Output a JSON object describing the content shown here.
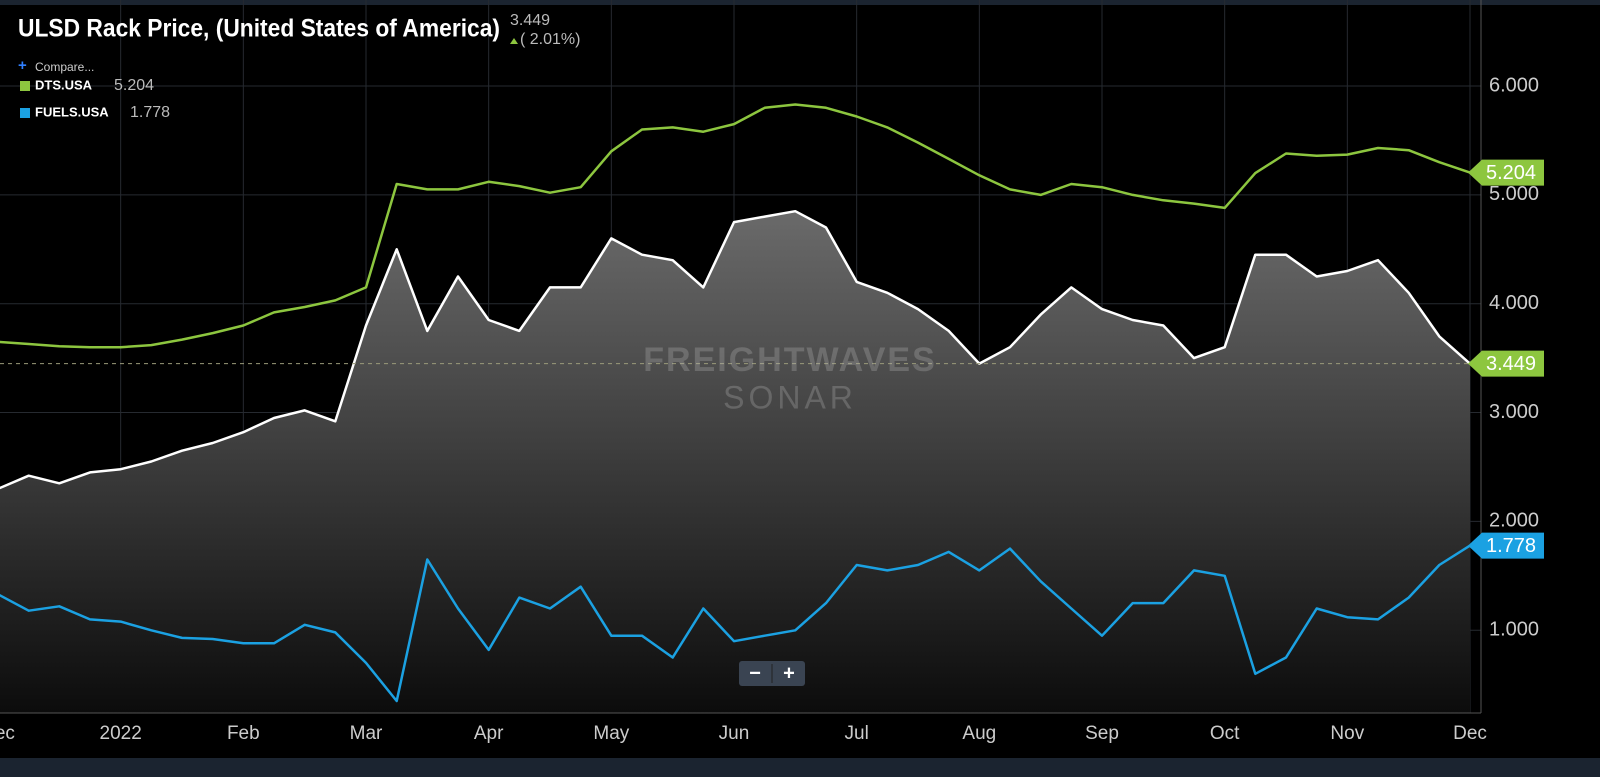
{
  "chart_data": {
    "type": "line",
    "title": "ULSD Rack Price, (United States of America)",
    "current_value": 3.449,
    "change_label": "( 2.01%)",
    "compare_label": "Compare...",
    "watermark": [
      "FREIGHTWAVES",
      "SONAR"
    ],
    "zoom_controls": [
      "−",
      "+"
    ],
    "categories": [
      "Dec",
      null,
      null,
      null,
      "2022",
      null,
      null,
      null,
      "Feb",
      null,
      null,
      null,
      "Mar",
      null,
      null,
      null,
      "Apr",
      null,
      null,
      null,
      "May",
      null,
      null,
      null,
      "Jun",
      null,
      null,
      null,
      "Jul",
      null,
      null,
      null,
      "Aug",
      null,
      null,
      null,
      "Sep",
      null,
      null,
      null,
      "Oct",
      null,
      null,
      null,
      "Nov",
      null,
      null,
      null,
      "Dec"
    ],
    "series": [
      {
        "color": "#ffffff",
        "label_color": "#8dc63f",
        "area": true,
        "values": [
          2.3,
          2.42,
          2.35,
          2.45,
          2.48,
          2.55,
          2.65,
          2.72,
          2.82,
          2.95,
          3.02,
          2.92,
          3.8,
          4.5,
          3.75,
          4.25,
          3.85,
          3.75,
          4.15,
          4.15,
          4.6,
          4.45,
          4.4,
          4.15,
          4.75,
          4.8,
          4.85,
          4.7,
          4.2,
          4.1,
          3.95,
          3.75,
          3.45,
          3.6,
          3.9,
          4.15,
          3.95,
          3.85,
          3.8,
          3.5,
          3.6,
          4.45,
          4.45,
          4.25,
          4.3,
          4.4,
          4.1,
          3.7,
          3.449
        ]
      },
      {
        "name": "DTS.USA",
        "color": "#8dc63f",
        "label_color": "#8dc63f",
        "values": [
          3.65,
          3.63,
          3.61,
          3.6,
          3.6,
          3.62,
          3.67,
          3.73,
          3.8,
          3.92,
          3.97,
          4.03,
          4.15,
          5.1,
          5.05,
          5.05,
          5.12,
          5.08,
          5.02,
          5.07,
          5.4,
          5.6,
          5.62,
          5.58,
          5.65,
          5.8,
          5.83,
          5.8,
          5.72,
          5.62,
          5.48,
          5.33,
          5.18,
          5.05,
          5.0,
          5.1,
          5.07,
          5.0,
          4.95,
          4.92,
          4.88,
          5.2,
          5.38,
          5.36,
          5.37,
          5.43,
          5.41,
          5.3,
          5.204
        ]
      },
      {
        "name": "FUELS.USA",
        "color": "#1ba1e2",
        "label_color": "#1ba1e2",
        "values": [
          1.33,
          1.18,
          1.22,
          1.1,
          1.08,
          1.0,
          0.93,
          0.92,
          0.88,
          0.88,
          1.05,
          0.98,
          0.7,
          0.35,
          1.65,
          1.2,
          0.82,
          1.3,
          1.2,
          1.4,
          0.95,
          0.95,
          0.75,
          1.2,
          0.9,
          0.95,
          1.0,
          1.25,
          1.6,
          1.55,
          1.6,
          1.72,
          1.55,
          1.75,
          1.45,
          1.2,
          0.95,
          1.25,
          1.25,
          1.55,
          1.5,
          0.6,
          0.75,
          1.2,
          1.12,
          1.1,
          1.3,
          1.6,
          1.778
        ]
      }
    ],
    "ylim": [
      0.24,
      6.79
    ],
    "yticks": [
      {
        "value": 1,
        "label": "1.000"
      },
      {
        "value": 2,
        "label": "2.000"
      },
      {
        "value": 3,
        "label": "3.000"
      },
      {
        "value": 4,
        "label": "4.000"
      },
      {
        "value": 5,
        "label": "5.000"
      },
      {
        "value": 6,
        "label": "6.000"
      }
    ],
    "grid": true
  }
}
